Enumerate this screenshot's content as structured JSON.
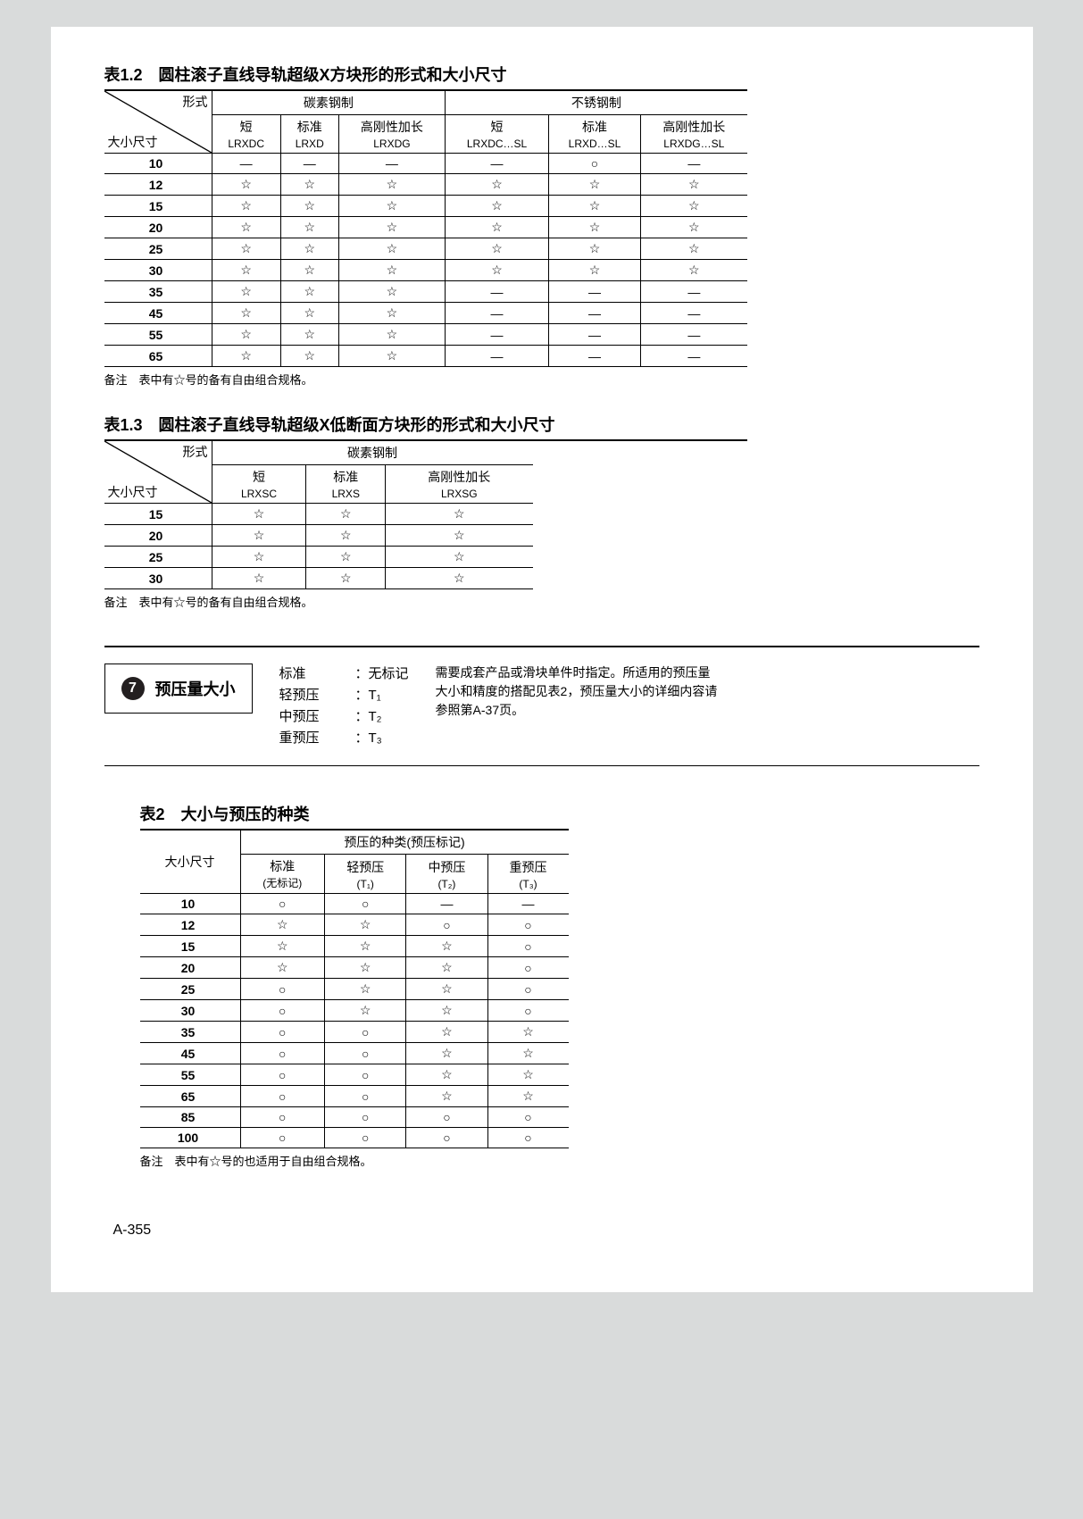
{
  "table12": {
    "title": "表1.2　圆柱滚子直线导轨超级X方块形的形式和大小尺寸",
    "diag_top": "形式",
    "diag_bottom": "大小尺寸",
    "group1": "碳素钢制",
    "group2": "不锈钢制",
    "cols": [
      {
        "top": "短",
        "bottom": "LRXDC"
      },
      {
        "top": "标准",
        "bottom": "LRXD"
      },
      {
        "top": "高刚性加长",
        "bottom": "LRXDG"
      },
      {
        "top": "短",
        "bottom": "LRXDC…SL"
      },
      {
        "top": "标准",
        "bottom": "LRXD…SL"
      },
      {
        "top": "高刚性加长",
        "bottom": "LRXDG…SL"
      }
    ],
    "rows": [
      {
        "size": "10",
        "vals": [
          "—",
          "—",
          "—",
          "—",
          "○",
          "—"
        ]
      },
      {
        "size": "12",
        "vals": [
          "☆",
          "☆",
          "☆",
          "☆",
          "☆",
          "☆"
        ]
      },
      {
        "size": "15",
        "vals": [
          "☆",
          "☆",
          "☆",
          "☆",
          "☆",
          "☆"
        ]
      },
      {
        "size": "20",
        "vals": [
          "☆",
          "☆",
          "☆",
          "☆",
          "☆",
          "☆"
        ]
      },
      {
        "size": "25",
        "vals": [
          "☆",
          "☆",
          "☆",
          "☆",
          "☆",
          "☆"
        ]
      },
      {
        "size": "30",
        "vals": [
          "☆",
          "☆",
          "☆",
          "☆",
          "☆",
          "☆"
        ]
      },
      {
        "size": "35",
        "vals": [
          "☆",
          "☆",
          "☆",
          "—",
          "—",
          "—"
        ]
      },
      {
        "size": "45",
        "vals": [
          "☆",
          "☆",
          "☆",
          "—",
          "—",
          "—"
        ]
      },
      {
        "size": "55",
        "vals": [
          "☆",
          "☆",
          "☆",
          "—",
          "—",
          "—"
        ]
      },
      {
        "size": "65",
        "vals": [
          "☆",
          "☆",
          "☆",
          "—",
          "—",
          "—"
        ]
      }
    ],
    "note": "备注　表中有☆号的备有自由组合规格。"
  },
  "table13": {
    "title": "表1.3　圆柱滚子直线导轨超级X低断面方块形的形式和大小尺寸",
    "diag_top": "形式",
    "diag_bottom": "大小尺寸",
    "group1": "碳素钢制",
    "cols": [
      {
        "top": "短",
        "bottom": "LRXSC"
      },
      {
        "top": "标准",
        "bottom": "LRXS"
      },
      {
        "top": "高刚性加长",
        "bottom": "LRXSG"
      }
    ],
    "rows": [
      {
        "size": "15",
        "vals": [
          "☆",
          "☆",
          "☆"
        ]
      },
      {
        "size": "20",
        "vals": [
          "☆",
          "☆",
          "☆"
        ]
      },
      {
        "size": "25",
        "vals": [
          "☆",
          "☆",
          "☆"
        ]
      },
      {
        "size": "30",
        "vals": [
          "☆",
          "☆",
          "☆"
        ]
      }
    ],
    "note": "备注　表中有☆号的备有自由组合规格。"
  },
  "section7": {
    "number": "7",
    "label": "预压量大小",
    "col1": [
      "标准",
      "轻预压",
      "中预压",
      "重预压"
    ],
    "col2_prefix": "：",
    "col2": [
      "无标记",
      "T₁",
      "T₂",
      "T₃"
    ],
    "desc": "需要成套产品或滑块单件时指定。所适用的预压量大小和精度的搭配见表2，预压量大小的详细内容请参照第A-37页。"
  },
  "table2": {
    "title": "表2　大小与预压的种类",
    "size_header": "大小尺寸",
    "group": "预压的种类(预压标记)",
    "cols": [
      {
        "top": "标准",
        "bottom": "(无标记)"
      },
      {
        "top": "轻预压",
        "bottom": "(T₁)"
      },
      {
        "top": "中预压",
        "bottom": "(T₂)"
      },
      {
        "top": "重预压",
        "bottom": "(T₃)"
      }
    ],
    "rows": [
      {
        "size": "10",
        "vals": [
          "○",
          "○",
          "—",
          "—"
        ]
      },
      {
        "size": "12",
        "vals": [
          "☆",
          "☆",
          "○",
          "○"
        ]
      },
      {
        "size": "15",
        "vals": [
          "☆",
          "☆",
          "☆",
          "○"
        ]
      },
      {
        "size": "20",
        "vals": [
          "☆",
          "☆",
          "☆",
          "○"
        ]
      },
      {
        "size": "25",
        "vals": [
          "○",
          "☆",
          "☆",
          "○"
        ]
      },
      {
        "size": "30",
        "vals": [
          "○",
          "☆",
          "☆",
          "○"
        ]
      },
      {
        "size": "35",
        "vals": [
          "○",
          "○",
          "☆",
          "☆"
        ]
      },
      {
        "size": "45",
        "vals": [
          "○",
          "○",
          "☆",
          "☆"
        ]
      },
      {
        "size": "55",
        "vals": [
          "○",
          "○",
          "☆",
          "☆"
        ]
      },
      {
        "size": "65",
        "vals": [
          "○",
          "○",
          "☆",
          "☆"
        ]
      },
      {
        "size": "85",
        "vals": [
          "○",
          "○",
          "○",
          "○"
        ]
      },
      {
        "size": "100",
        "vals": [
          "○",
          "○",
          "○",
          "○"
        ]
      }
    ],
    "note": "备注　表中有☆号的也适用于自由组合规格。"
  },
  "page_number": "A-355"
}
